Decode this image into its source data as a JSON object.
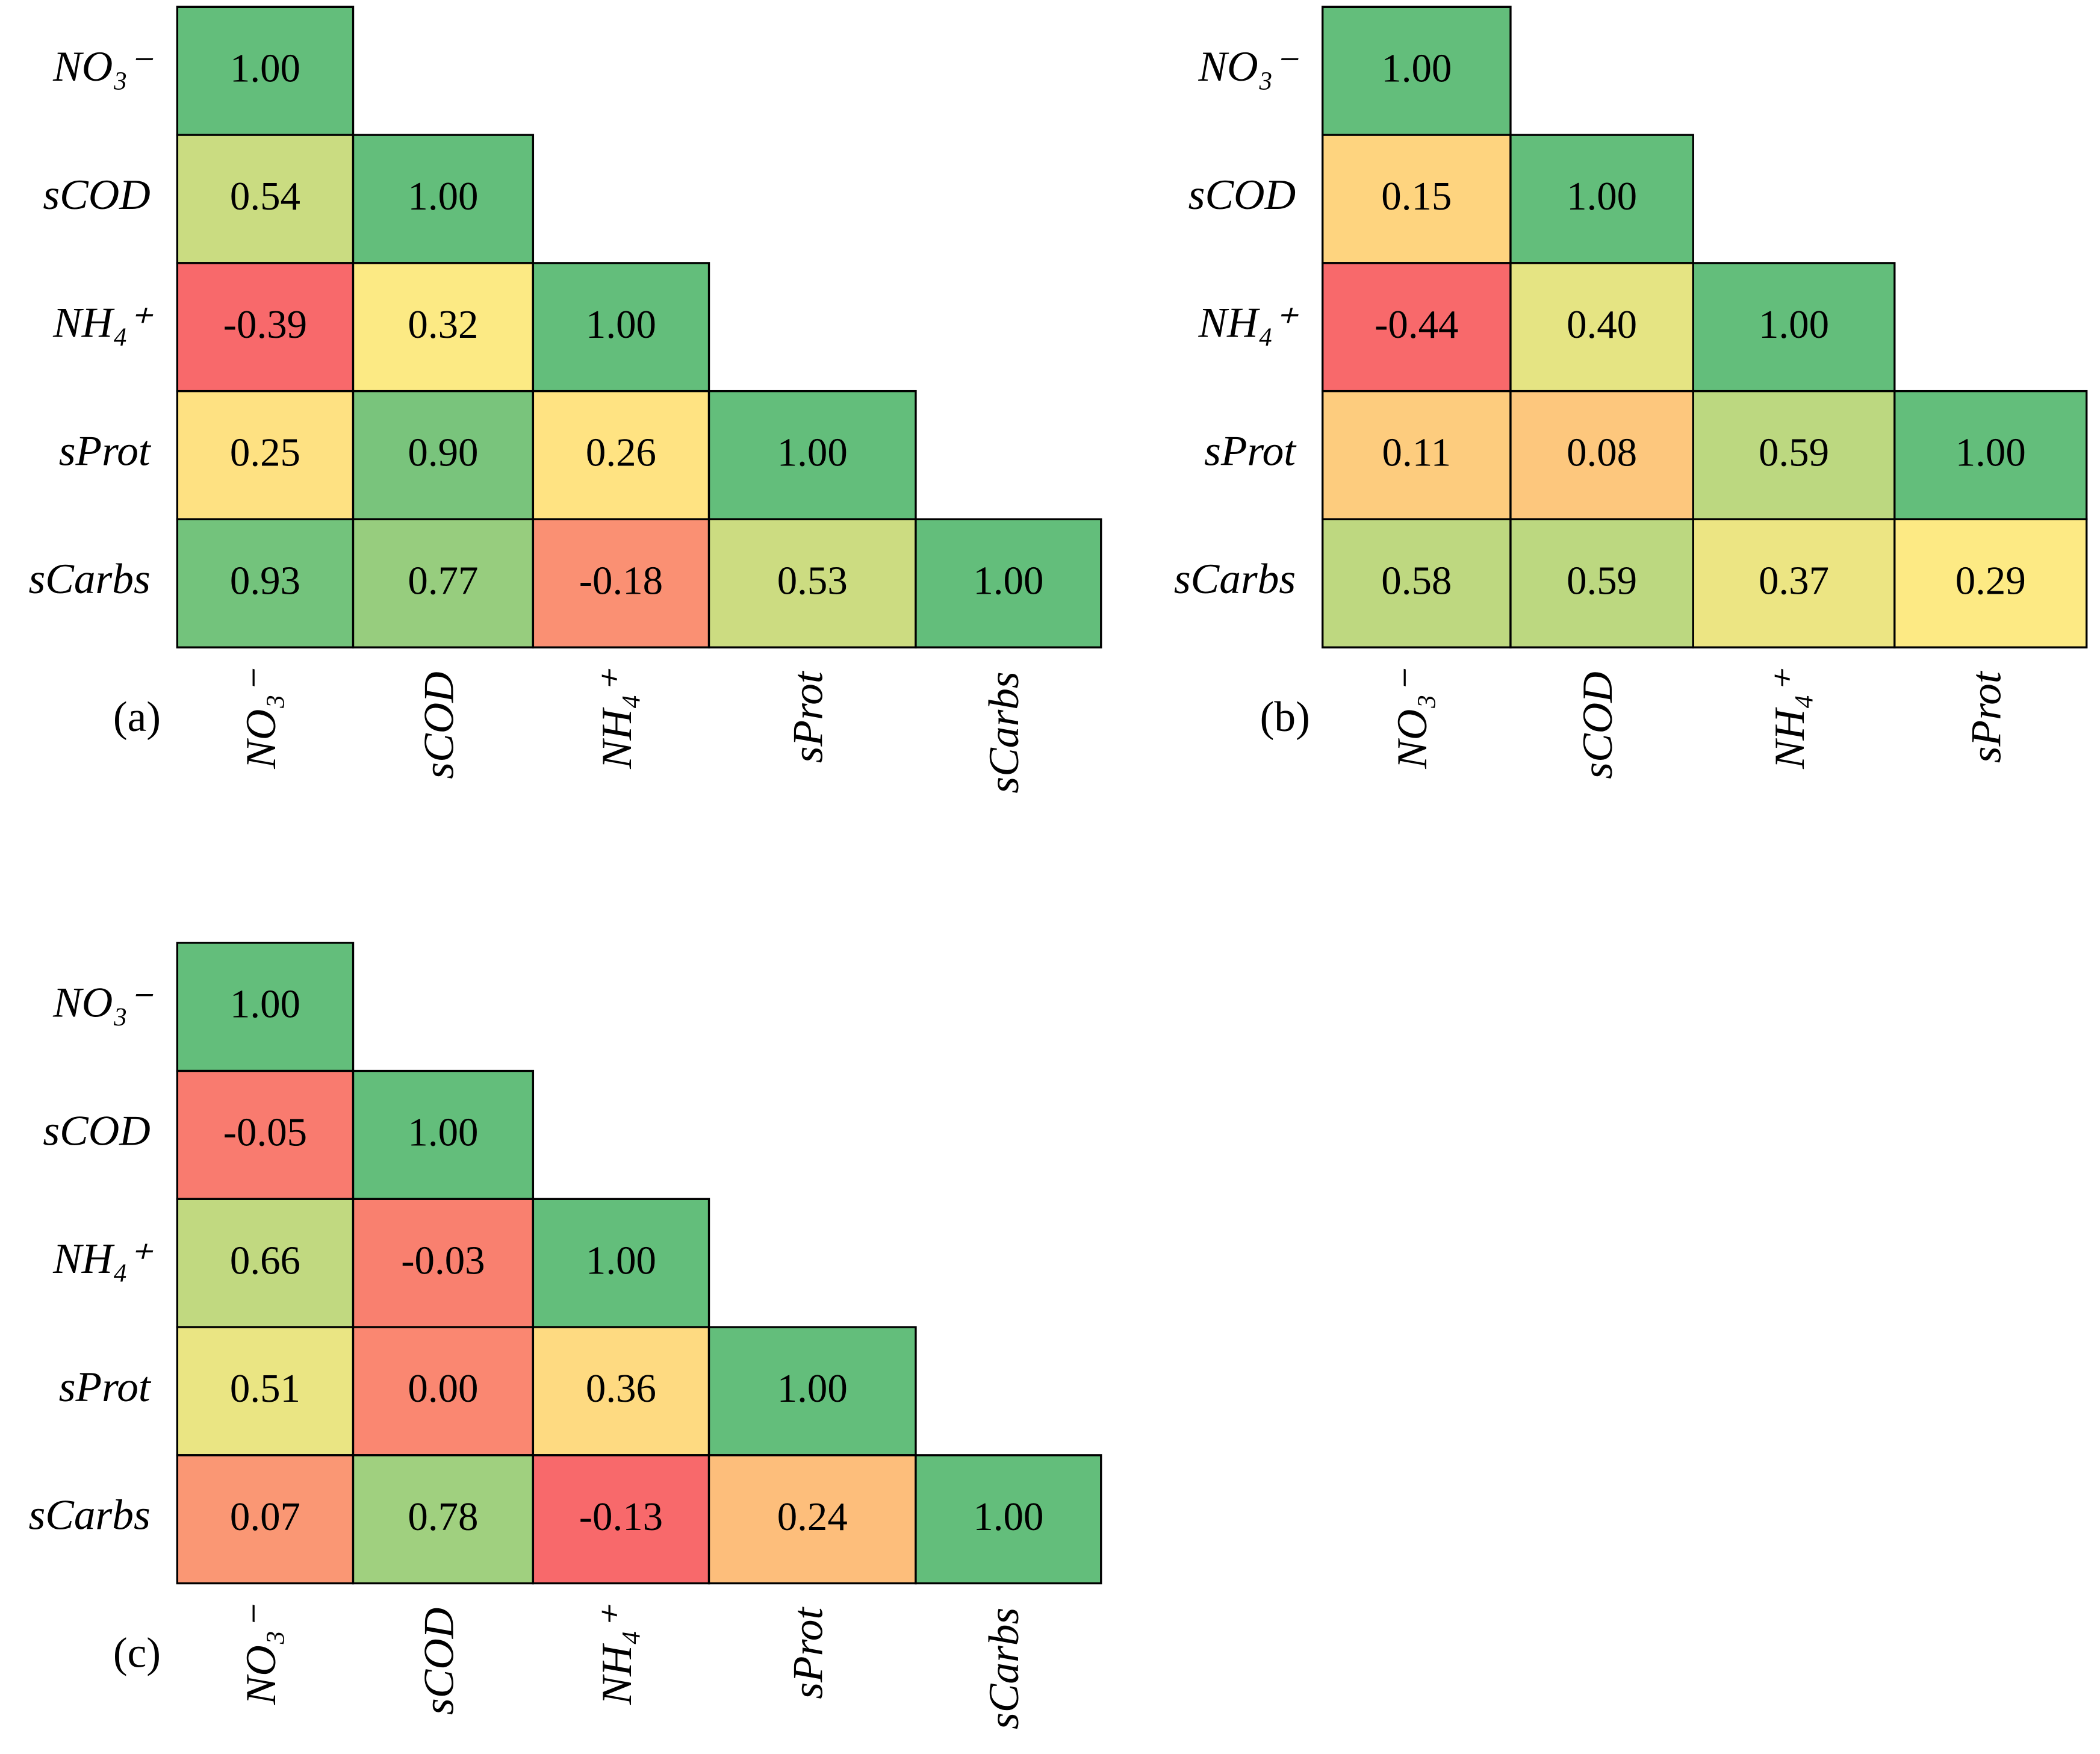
{
  "chart_data": [
    {
      "type": "heatmap",
      "panel_label": "(a)",
      "rows": [
        "NO₃⁻",
        "sCOD",
        "NH₄⁺",
        "sProt",
        "sCarbs"
      ],
      "columns": [
        "NO₃⁻",
        "sCOD",
        "NH₄⁺",
        "sProt",
        "sCarbs"
      ],
      "values": [
        [
          1.0
        ],
        [
          0.54,
          1.0
        ],
        [
          -0.39,
          0.32,
          1.0
        ],
        [
          0.25,
          0.9,
          0.26,
          1.0
        ],
        [
          0.93,
          0.77,
          -0.18,
          0.53,
          1.0
        ]
      ],
      "value_labels": [
        [
          "1.00"
        ],
        [
          "0.54",
          "1.00"
        ],
        [
          "-0.39",
          "0.32",
          "1.00"
        ],
        [
          "0.25",
          "0.90",
          "0.26",
          "1.00"
        ],
        [
          "0.93",
          "0.77",
          "-0.18",
          "0.53",
          "1.00"
        ]
      ],
      "colorscale": [
        "#f8696b",
        "#ffeb84",
        "#63be7b"
      ]
    },
    {
      "type": "heatmap",
      "panel_label": "(b)",
      "rows": [
        "NO₃⁻",
        "sCOD",
        "NH₄⁺",
        "sProt",
        "sCarbs"
      ],
      "columns": [
        "NO₃⁻",
        "sCOD",
        "NH₄⁺",
        "sProt"
      ],
      "values": [
        [
          1.0
        ],
        [
          0.15,
          1.0
        ],
        [
          -0.44,
          0.4,
          1.0
        ],
        [
          0.11,
          0.08,
          0.59,
          1.0
        ],
        [
          0.58,
          0.59,
          0.37,
          0.29
        ]
      ],
      "value_labels": [
        [
          "1.00"
        ],
        [
          "0.15",
          "1.00"
        ],
        [
          "-0.44",
          "0.40",
          "1.00"
        ],
        [
          "0.11",
          "0.08",
          "0.59",
          "1.00"
        ],
        [
          "0.58",
          "0.59",
          "0.37",
          "0.29"
        ]
      ],
      "colorscale": [
        "#f8696b",
        "#ffeb84",
        "#63be7b"
      ]
    },
    {
      "type": "heatmap",
      "panel_label": "(c)",
      "rows": [
        "NO₃⁻",
        "sCOD",
        "NH₄⁺",
        "sProt",
        "sCarbs"
      ],
      "columns": [
        "NO₃⁻",
        "sCOD",
        "NH₄⁺",
        "sProt",
        "sCarbs"
      ],
      "values": [
        [
          1.0
        ],
        [
          -0.05,
          1.0
        ],
        [
          0.66,
          -0.03,
          1.0
        ],
        [
          0.51,
          0.0,
          0.36,
          1.0
        ],
        [
          0.07,
          0.78,
          -0.13,
          0.24,
          1.0
        ]
      ],
      "value_labels": [
        [
          "1.00"
        ],
        [
          "-0.05",
          "1.00"
        ],
        [
          "0.66",
          "-0.03",
          "1.00"
        ],
        [
          "0.51",
          "0.00",
          "0.36",
          "1.00"
        ],
        [
          "0.07",
          "0.78",
          "-0.13",
          "0.24",
          "1.00"
        ]
      ],
      "colorscale": [
        "#f8696b",
        "#ffeb84",
        "#63be7b"
      ]
    }
  ]
}
